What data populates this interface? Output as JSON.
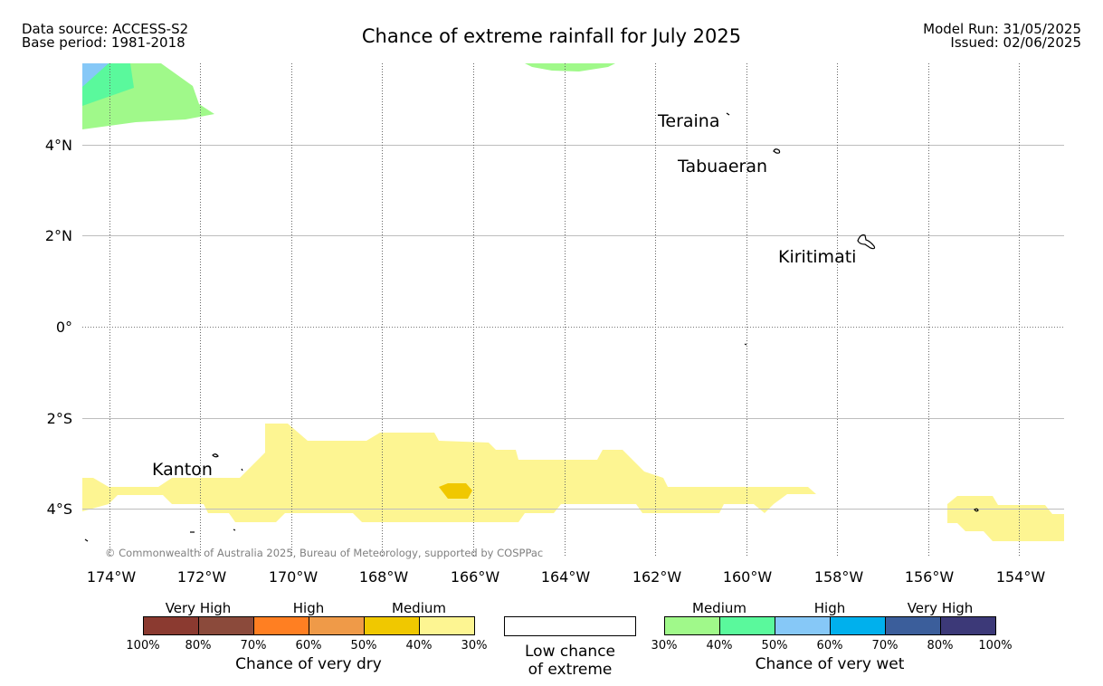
{
  "header": {
    "data_source": "Data source: ACCESS-S2",
    "base_period": "Base period: 1981-2018",
    "title": "Chance of extreme rainfall for July 2025",
    "model_run": "Model Run: 31/05/2025",
    "issued": "Issued: 02/06/2025"
  },
  "map": {
    "lat_ticks": [
      "4°N",
      "2°N",
      "0°",
      "2°S",
      "4°S"
    ],
    "lon_ticks": [
      "174°W",
      "172°W",
      "170°W",
      "168°W",
      "166°W",
      "164°W",
      "162°W",
      "160°W",
      "158°W",
      "156°W",
      "154°W"
    ],
    "places": [
      "Teraina",
      "Tabuaeran",
      "Kiritimati",
      "Kanton"
    ],
    "copyright": "© Commonwealth of Australia 2025, Bureau of Meteorology, supported by COSPPac",
    "colors": {
      "dry_30_40": "#fdf592",
      "dry_40_50": "#f0c800",
      "wet_30_40": "#a0f98a",
      "wet_40_50": "#5af99c",
      "wet_50_60": "#86c8f7"
    }
  },
  "legend": {
    "dry": {
      "title": "Chance of very dry",
      "categories": [
        "Very High",
        "High",
        "Medium"
      ],
      "ticks": [
        "100%",
        "80%",
        "70%",
        "60%",
        "50%",
        "40%",
        "30%"
      ],
      "colors": [
        "#8b3a30",
        "#8b4a3b",
        "#ff7f22",
        "#ef9a48",
        "#f0c800",
        "#fdf592"
      ]
    },
    "low": {
      "line1": "Low chance",
      "line2": "of extreme"
    },
    "wet": {
      "title": "Chance of very wet",
      "categories": [
        "Medium",
        "High",
        "Very High"
      ],
      "ticks": [
        "30%",
        "40%",
        "50%",
        "60%",
        "70%",
        "80%",
        "100%"
      ],
      "colors": [
        "#a0f98a",
        "#5af99c",
        "#86c8f7",
        "#00b0ed",
        "#3b5e9b",
        "#3c3978"
      ]
    }
  }
}
